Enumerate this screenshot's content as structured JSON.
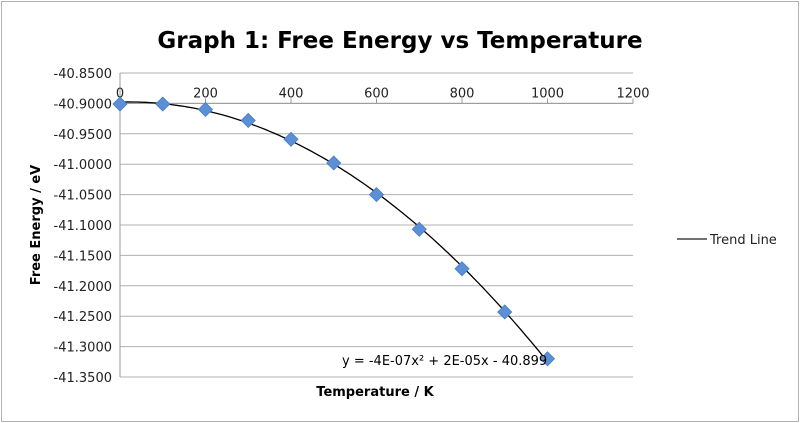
{
  "chart_data": {
    "type": "scatter",
    "title": "Graph 1: Free Energy vs Temperature",
    "xlabel": "Temperature / K",
    "ylabel": "Free Energy / eV",
    "xlim": [
      0,
      1200
    ],
    "ylim": [
      -41.35,
      -40.85
    ],
    "x_ticks": [
      "0",
      "200",
      "400",
      "600",
      "800",
      "1000",
      "1200"
    ],
    "y_ticks": [
      "-40.8500",
      "-40.9000",
      "-40.9500",
      "-41.0000",
      "-41.0500",
      "-41.1000",
      "-41.1500",
      "-41.2000",
      "-41.2500",
      "-41.3000",
      "-41.3500"
    ],
    "grid": "horizontal",
    "x_axis_crosses_at": -40.9,
    "x": [
      0,
      100,
      200,
      300,
      400,
      500,
      600,
      700,
      800,
      900,
      1000
    ],
    "y": [
      -40.901,
      -40.901,
      -40.91,
      -40.928,
      -40.959,
      -40.998,
      -41.05,
      -41.107,
      -41.172,
      -41.243,
      -41.32
    ],
    "marker": "diamond",
    "marker_color": "#5b8fd6",
    "trendline": {
      "type": "polynomial",
      "order": 2,
      "name": "Trend Line",
      "equation": "y = -4E-07x² + 2E-05x - 40.899",
      "color": "#000000"
    },
    "legend_position": "right"
  }
}
